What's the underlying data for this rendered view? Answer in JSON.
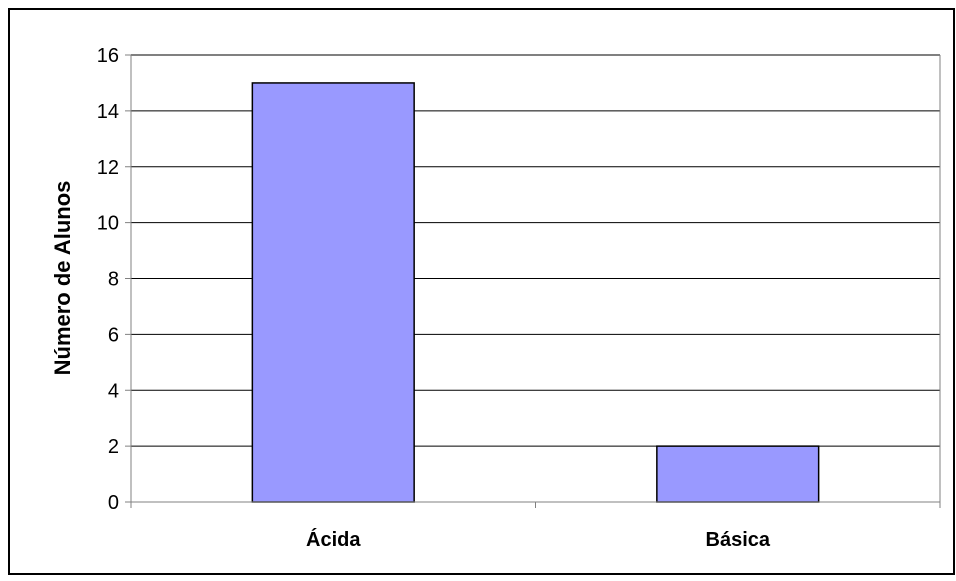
{
  "chart_data": {
    "type": "bar",
    "title": "",
    "xlabel": "",
    "ylabel": "Número de Alunos",
    "categories": [
      "Ácida",
      "Básica"
    ],
    "values": [
      15,
      2
    ],
    "ylim": [
      0,
      16
    ],
    "ytick_step": 2,
    "yticks": [
      "0",
      "2",
      "4",
      "6",
      "8",
      "10",
      "12",
      "14",
      "16"
    ],
    "grid": true,
    "legend": "none",
    "colors": {
      "bar_fill": "#9999ff",
      "bar_stroke": "#000000",
      "grid": "#000000",
      "plot_background": "#ffffff",
      "axis": "#808080",
      "frame": "#000000"
    }
  }
}
